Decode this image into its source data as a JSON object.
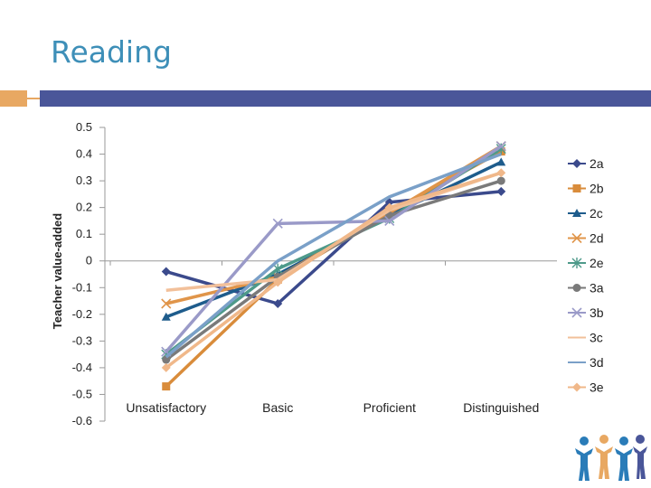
{
  "slide": {
    "title": "Reading"
  },
  "chart_data": {
    "type": "line",
    "title": "Reading",
    "xlabel": "",
    "ylabel": "Teacher value-added",
    "ylim": [
      -0.6,
      0.5
    ],
    "yticks": [
      "0.5",
      "0.4",
      "0.3",
      "0.2",
      "0.1",
      "0",
      "-0.1",
      "-0.2",
      "-0.3",
      "-0.4",
      "-0.5",
      "-0.6"
    ],
    "categories": [
      "Unsatisfactory",
      "Basic",
      "Proficient",
      "Distinguished"
    ],
    "legend_position": "right",
    "series": [
      {
        "name": "2a",
        "color": "#3b4a8c",
        "marker": "diamond",
        "values": [
          -0.04,
          -0.16,
          0.22,
          0.26
        ]
      },
      {
        "name": "2b",
        "color": "#d98c3b",
        "marker": "square",
        "values": [
          -0.47,
          -0.07,
          0.18,
          0.41
        ]
      },
      {
        "name": "2c",
        "color": "#1e5c8c",
        "marker": "triangle",
        "values": [
          -0.21,
          -0.05,
          0.17,
          0.37
        ]
      },
      {
        "name": "2d",
        "color": "#e0954a",
        "marker": "x",
        "values": [
          -0.16,
          -0.06,
          0.18,
          0.43
        ]
      },
      {
        "name": "2e",
        "color": "#4e9a8a",
        "marker": "star",
        "values": [
          -0.35,
          -0.03,
          0.16,
          0.42
        ]
      },
      {
        "name": "3a",
        "color": "#7a7a7a",
        "marker": "circle",
        "values": [
          -0.37,
          -0.06,
          0.17,
          0.3
        ]
      },
      {
        "name": "3b",
        "color": "#9a9ac8",
        "marker": "x",
        "values": [
          -0.34,
          0.14,
          0.15,
          0.43
        ]
      },
      {
        "name": "3c",
        "color": "#f2c09a",
        "marker": "none",
        "values": [
          -0.11,
          -0.07,
          0.19,
          0.33
        ]
      },
      {
        "name": "3d",
        "color": "#7aa0c8",
        "marker": "none",
        "values": [
          -0.36,
          0.0,
          0.24,
          0.4
        ]
      },
      {
        "name": "3e",
        "color": "#f0b88a",
        "marker": "diamond",
        "values": [
          -0.4,
          -0.08,
          0.2,
          0.33
        ]
      }
    ]
  }
}
